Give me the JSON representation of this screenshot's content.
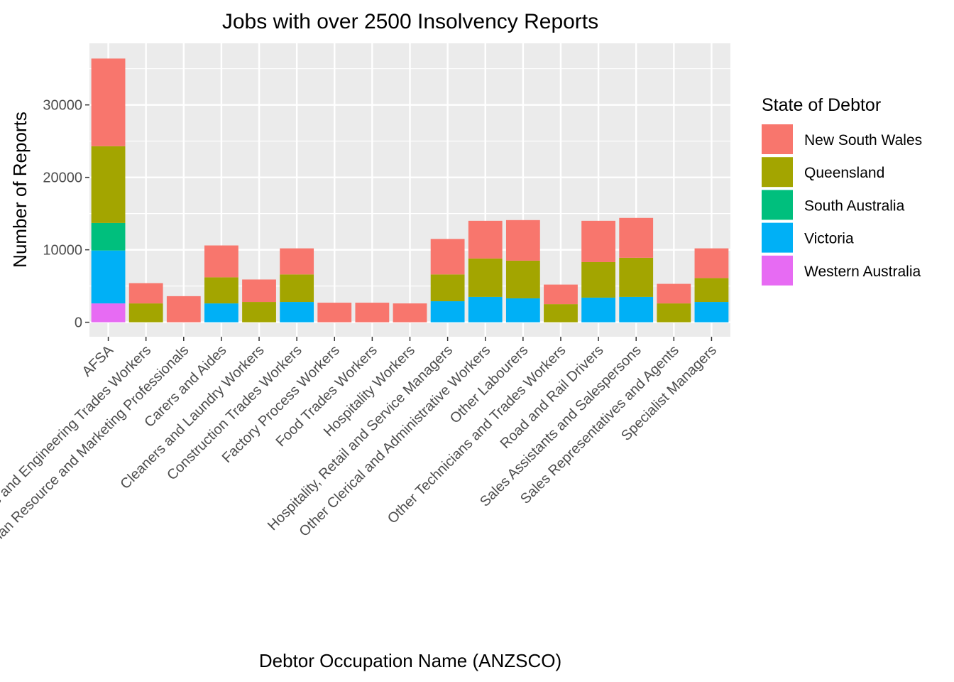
{
  "chart_data": {
    "type": "bar",
    "stacked": true,
    "title": "Jobs with over 2500 Insolvency Reports",
    "xlabel": "Debtor Occupation Name (ANZSCO)",
    "ylabel": "Number of Reports",
    "ylim": [
      -2000,
      38500
    ],
    "yticks": [
      0,
      10000,
      20000,
      30000
    ],
    "grid": true,
    "legend": {
      "title": "State of Debtor",
      "position": "right"
    },
    "categories": [
      "AFSA",
      "Automotive and Engineering Trades Workers",
      "Business, Human Resource and Marketing Professionals",
      "Carers and Aides",
      "Cleaners and Laundry Workers",
      "Construction Trades Workers",
      "Factory Process Workers",
      "Food Trades Workers",
      "Hospitality Workers",
      "Hospitality, Retail and Service Managers",
      "Other Clerical and Administrative Workers",
      "Other Labourers",
      "Other Technicians and Trades Workers",
      "Road and Rail Drivers",
      "Sales Assistants and Salespersons",
      "Sales Representatives and Agents",
      "Specialist Managers"
    ],
    "series": [
      {
        "name": "Western Australia",
        "color": "#E76BF3",
        "values": [
          2600,
          0,
          0,
          0,
          0,
          0,
          0,
          0,
          0,
          0,
          0,
          0,
          0,
          0,
          0,
          0,
          0
        ]
      },
      {
        "name": "Victoria",
        "color": "#00B0F6",
        "values": [
          7300,
          0,
          0,
          2600,
          0,
          2800,
          0,
          0,
          0,
          2900,
          3500,
          3300,
          0,
          3400,
          3500,
          0,
          2800
        ]
      },
      {
        "name": "South Australia",
        "color": "#00BF7D",
        "values": [
          3800,
          0,
          0,
          0,
          0,
          0,
          0,
          0,
          0,
          0,
          0,
          0,
          0,
          0,
          0,
          0,
          0
        ]
      },
      {
        "name": "Queensland",
        "color": "#A3A500",
        "values": [
          10600,
          2600,
          0,
          3600,
          2800,
          3800,
          0,
          0,
          0,
          3700,
          5300,
          5200,
          2500,
          4900,
          5400,
          2600,
          3300
        ]
      },
      {
        "name": "New South Wales",
        "color": "#F8766D",
        "values": [
          12100,
          2800,
          3600,
          4400,
          3100,
          3600,
          2700,
          2700,
          2600,
          4900,
          5200,
          5600,
          2700,
          5700,
          5500,
          2700,
          4100
        ]
      }
    ]
  }
}
